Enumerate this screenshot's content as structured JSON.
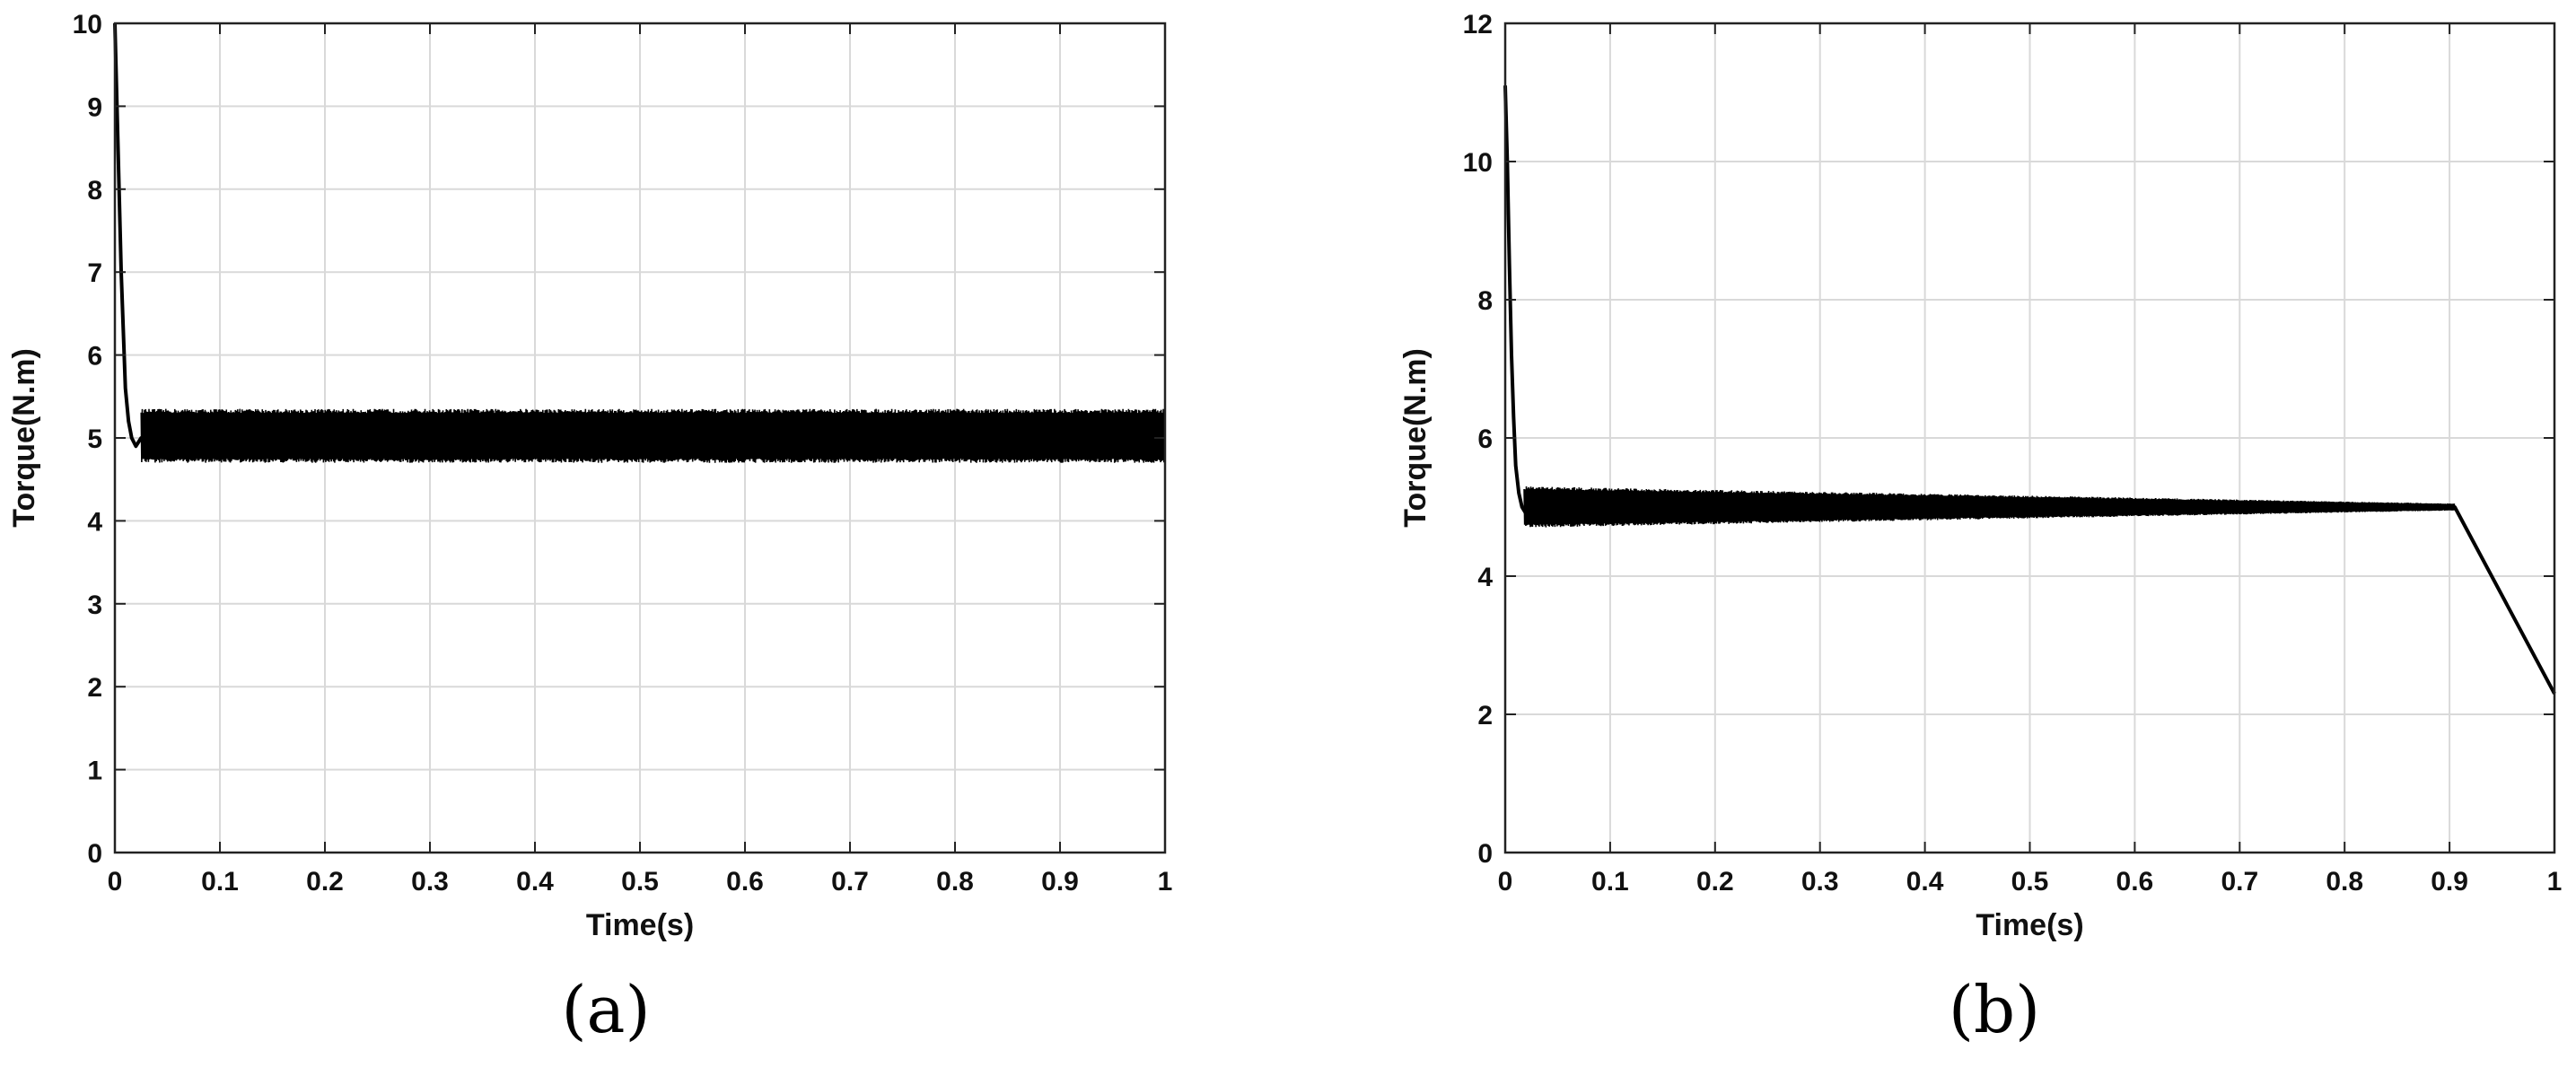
{
  "chart_data": [
    {
      "type": "line",
      "panel_label": "(a)",
      "xlabel": "Time(s)",
      "ylabel": "Torque(N.m)",
      "xlim": [
        0,
        1
      ],
      "ylim": [
        0,
        10
      ],
      "xticks": [
        0,
        0.1,
        0.2,
        0.3,
        0.4,
        0.5,
        0.6,
        0.7,
        0.8,
        0.9,
        1
      ],
      "xtick_labels": [
        "0",
        "0.1",
        "0.2",
        "0.3",
        "0.4",
        "0.5",
        "0.6",
        "0.7",
        "0.8",
        "0.9",
        "1"
      ],
      "yticks": [
        0,
        1,
        2,
        3,
        4,
        5,
        6,
        7,
        8,
        9,
        10
      ],
      "ytick_labels": [
        "0",
        "1",
        "2",
        "3",
        "4",
        "5",
        "6",
        "7",
        "8",
        "9",
        "10"
      ],
      "grid": true,
      "series": [
        {
          "color": "#000000",
          "x": [
            0,
            0.002,
            0.004,
            0.006,
            0.008,
            0.01,
            0.013,
            0.016,
            0.02,
            0.025,
            0.03,
            0.1,
            0.2,
            0.3,
            0.4,
            0.5,
            0.6,
            0.7,
            0.8,
            0.9,
            1.0
          ],
          "y": [
            10,
            9.0,
            8.0,
            7.0,
            6.3,
            5.6,
            5.2,
            5.0,
            4.9,
            5.0,
            5.0,
            5.0,
            5.0,
            5.0,
            5.0,
            5.0,
            5.0,
            5.0,
            5.0,
            5.0,
            5.0
          ],
          "ripple_band": {
            "x_start": 0.025,
            "x_end": 1.0,
            "lower": [
              4.7,
              4.7
            ],
            "upper": [
              5.35,
              5.35
            ]
          }
        }
      ]
    },
    {
      "type": "line",
      "panel_label": "(b)",
      "xlabel": "Time(s)",
      "ylabel": "Torque(N.m)",
      "xlim": [
        0,
        1
      ],
      "ylim": [
        0,
        12
      ],
      "xticks": [
        0,
        0.1,
        0.2,
        0.3,
        0.4,
        0.5,
        0.6,
        0.7,
        0.8,
        0.9,
        1
      ],
      "xtick_labels": [
        "0",
        "0.1",
        "0.2",
        "0.3",
        "0.4",
        "0.5",
        "0.6",
        "0.7",
        "0.8",
        "0.9",
        "1"
      ],
      "yticks": [
        0,
        2,
        4,
        6,
        8,
        10,
        12
      ],
      "ytick_labels": [
        "0",
        "2",
        "4",
        "6",
        "8",
        "10",
        "12"
      ],
      "grid": true,
      "series": [
        {
          "color": "#000000",
          "x": [
            0,
            0.002,
            0.004,
            0.006,
            0.008,
            0.01,
            0.013,
            0.016,
            0.02,
            0.025,
            0.1,
            0.2,
            0.3,
            0.4,
            0.5,
            0.6,
            0.7,
            0.8,
            0.9,
            0.905,
            1.0
          ],
          "y": [
            11.1,
            10.0,
            8.5,
            7.2,
            6.3,
            5.6,
            5.2,
            5.0,
            4.9,
            5.0,
            5.0,
            5.0,
            5.0,
            5.0,
            5.0,
            5.0,
            5.0,
            5.0,
            5.0,
            5.0,
            2.3
          ],
          "ripple_band": {
            "x_start": 0.018,
            "x_end": 0.905,
            "lower": [
              4.7,
              4.95
            ],
            "upper": [
              5.3,
              5.05
            ]
          }
        }
      ]
    }
  ]
}
